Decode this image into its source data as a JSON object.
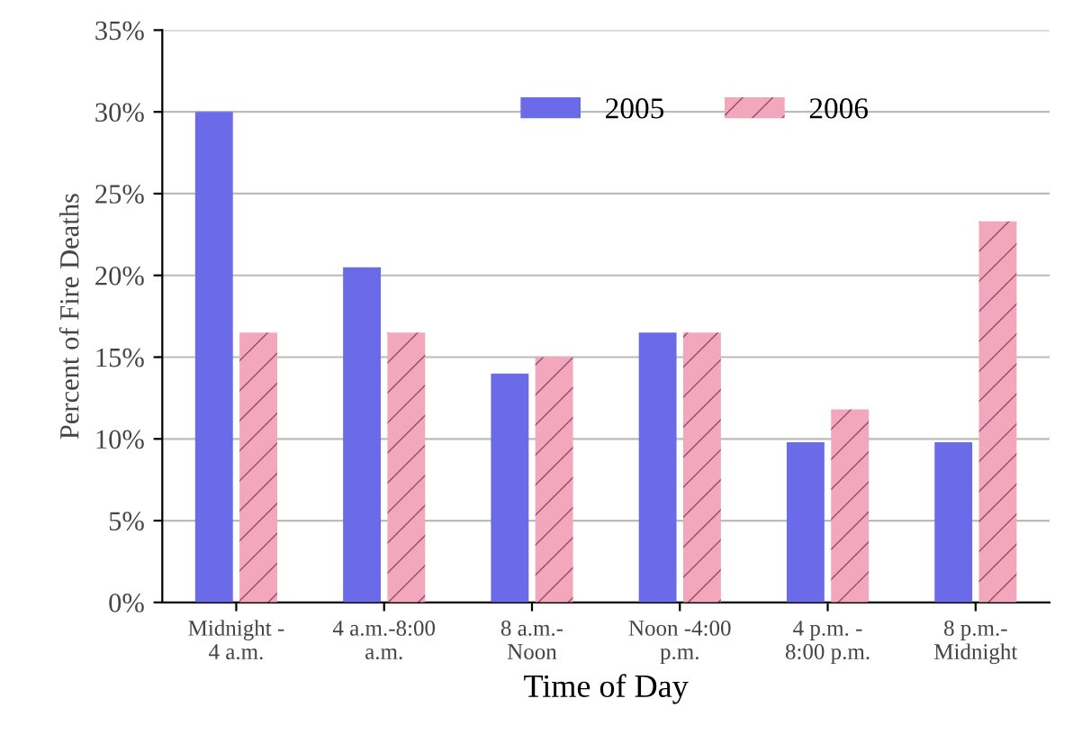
{
  "chart_data": {
    "type": "bar",
    "xlabel": "Time of Day",
    "ylabel": "Percent of Fire Deaths",
    "categories": [
      "Midnight -\n4 a.m.",
      "4 a.m.-8:00\na.m.",
      "8 a.m.-\nNoon",
      "Noon -4:00\np.m.",
      "4 p.m. -\n8:00 p.m.",
      "8 p.m.-\nMidnight"
    ],
    "series": [
      {
        "name": "2005",
        "color": "#6b6bea",
        "values": [
          30,
          20.5,
          14,
          16.5,
          9.8,
          9.8
        ]
      },
      {
        "name": "2006",
        "color": "#f2a7bd",
        "values": [
          16.5,
          16.5,
          15,
          16.5,
          11.8,
          23.3
        ]
      }
    ],
    "ylim": [
      0,
      35
    ],
    "yticks": [
      {
        "value": 0,
        "label": "0%"
      },
      {
        "value": 5,
        "label": "5%"
      },
      {
        "value": 10,
        "label": "10%"
      },
      {
        "value": 15,
        "label": "15%"
      },
      {
        "value": 20,
        "label": "20%"
      },
      {
        "value": 25,
        "label": "25%"
      },
      {
        "value": 30,
        "label": "30%"
      },
      {
        "value": 35,
        "label": "35%"
      }
    ],
    "grid": "y",
    "legend": "top"
  }
}
